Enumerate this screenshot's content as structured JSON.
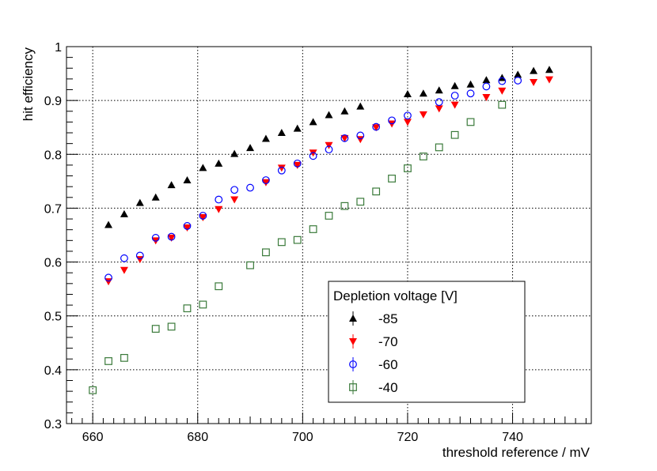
{
  "chart_data": {
    "type": "scatter",
    "title": "",
    "xlabel": "threshold reference / mV",
    "ylabel": "hit efficiency",
    "xlim": [
      655,
      755
    ],
    "ylim": [
      0.3,
      1.0
    ],
    "x_ticks": [
      660,
      680,
      700,
      720,
      740
    ],
    "x_tick_labels": [
      "660",
      "680",
      "700",
      "720",
      "740"
    ],
    "y_ticks": [
      0.3,
      0.4,
      0.5,
      0.6,
      0.7,
      0.8,
      0.9,
      1.0
    ],
    "y_tick_labels": [
      "0.3",
      "0.4",
      "0.5",
      "0.6",
      "0.7",
      "0.8",
      "0.9",
      "1"
    ],
    "grid": true,
    "legend": {
      "title": "Depletion voltage [V]",
      "placement": "bottom-right"
    },
    "series": [
      {
        "name": "-85",
        "marker": "triangle-up",
        "color": "#000000",
        "x": [
          663,
          666,
          669,
          672,
          675,
          678,
          681,
          684,
          687,
          690,
          693,
          696,
          699,
          702,
          705,
          708,
          711,
          720,
          723,
          726,
          729,
          732,
          735,
          738,
          741,
          744,
          747
        ],
        "y": [
          0.669,
          0.689,
          0.71,
          0.72,
          0.743,
          0.752,
          0.775,
          0.783,
          0.801,
          0.812,
          0.829,
          0.84,
          0.848,
          0.86,
          0.873,
          0.88,
          0.889,
          0.912,
          0.913,
          0.919,
          0.927,
          0.93,
          0.938,
          0.942,
          0.948,
          0.955,
          0.957
        ]
      },
      {
        "name": "-70",
        "marker": "triangle-down",
        "color": "#ff0000",
        "x": [
          663,
          666,
          669,
          672,
          675,
          678,
          681,
          684,
          687,
          693,
          696,
          699,
          702,
          705,
          708,
          711,
          714,
          717,
          720,
          723,
          726,
          729,
          735,
          738,
          744,
          747
        ],
        "y": [
          0.564,
          0.585,
          0.605,
          0.64,
          0.645,
          0.664,
          0.683,
          0.698,
          0.716,
          0.748,
          0.775,
          0.78,
          0.803,
          0.817,
          0.83,
          0.828,
          0.85,
          0.857,
          0.86,
          0.874,
          0.885,
          0.892,
          0.906,
          0.918,
          0.934,
          0.939
        ]
      },
      {
        "name": "-60",
        "marker": "circle-open",
        "color": "#0000ff",
        "x": [
          663,
          666,
          669,
          672,
          675,
          678,
          681,
          684,
          687,
          690,
          693,
          696,
          699,
          702,
          705,
          708,
          711,
          714,
          717,
          720,
          726,
          729,
          732,
          735,
          738,
          741
        ],
        "y": [
          0.571,
          0.607,
          0.612,
          0.645,
          0.647,
          0.667,
          0.686,
          0.716,
          0.734,
          0.738,
          0.752,
          0.77,
          0.783,
          0.797,
          0.809,
          0.83,
          0.835,
          0.851,
          0.863,
          0.872,
          0.897,
          0.909,
          0.913,
          0.926,
          0.936,
          0.937
        ]
      },
      {
        "name": "-40",
        "marker": "square-open",
        "color": "#3a7a3a",
        "x": [
          660,
          663,
          666,
          672,
          675,
          678,
          681,
          684,
          690,
          693,
          696,
          699,
          702,
          705,
          708,
          711,
          714,
          717,
          720,
          723,
          726,
          729,
          732,
          738
        ],
        "y": [
          0.362,
          0.416,
          0.422,
          0.476,
          0.48,
          0.514,
          0.521,
          0.555,
          0.594,
          0.618,
          0.637,
          0.641,
          0.661,
          0.686,
          0.704,
          0.712,
          0.731,
          0.755,
          0.774,
          0.796,
          0.813,
          0.836,
          0.86,
          0.892
        ]
      }
    ]
  }
}
